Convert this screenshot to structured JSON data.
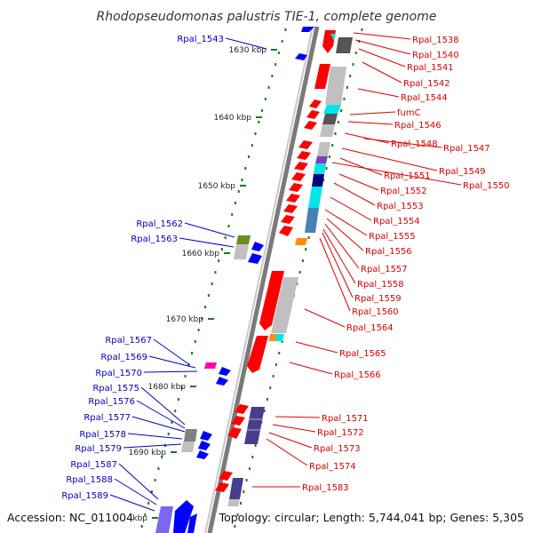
{
  "map": {
    "title": "Rhodopseudomonas palustris TIE-1, complete genome",
    "ticks": [
      "1630 kbp",
      "1640 kbp",
      "1650 kbp",
      "1660 kbp",
      "1670 kbp",
      "1680 kbp",
      "1690 kbp",
      "kbp"
    ]
  },
  "labels_right": [
    "Rpal_1538",
    "Rpal_1540",
    "Rpal_1541",
    "Rpal_1542",
    "Rpal_1544",
    "fumC",
    "Rpal_1546",
    "Rpal_1548",
    "Rpal_1547",
    "Rpal_1549",
    "Rpal_1551",
    "Rpal_1550",
    "Rpal_1552",
    "Rpal_1553",
    "Rpal_1554",
    "Rpal_1555",
    "Rpal_1556",
    "Rpal_1557",
    "Rpal_1558",
    "Rpal_1559",
    "Rpal_1560",
    "Rpal_1564",
    "Rpal_1565",
    "Rpal_1566",
    "Rpal_1571",
    "Rpal_1572",
    "Rpal_1573",
    "Rpal_1574",
    "Rpal_1583"
  ],
  "labels_left": [
    "Rpal_1543",
    "Rpal_1562",
    "Rpal_1563",
    "Rpal_1567",
    "Rpal_1569",
    "Rpal_1570",
    "Rpal_1575",
    "Rpal_1576",
    "Rpal_1577",
    "Rpal_1578",
    "Rpal_1579",
    "Rpal_1587",
    "Rpal_1588",
    "Rpal_1589"
  ],
  "colors": {
    "forward": "#e00000",
    "reverse": "#0000cc",
    "ruler": "#1a7a1a"
  },
  "footer": {
    "accession": "Accession: NC_011004",
    "summary": "Topology: circular; Length: 5,744,041 bp; Genes: 5,305"
  }
}
